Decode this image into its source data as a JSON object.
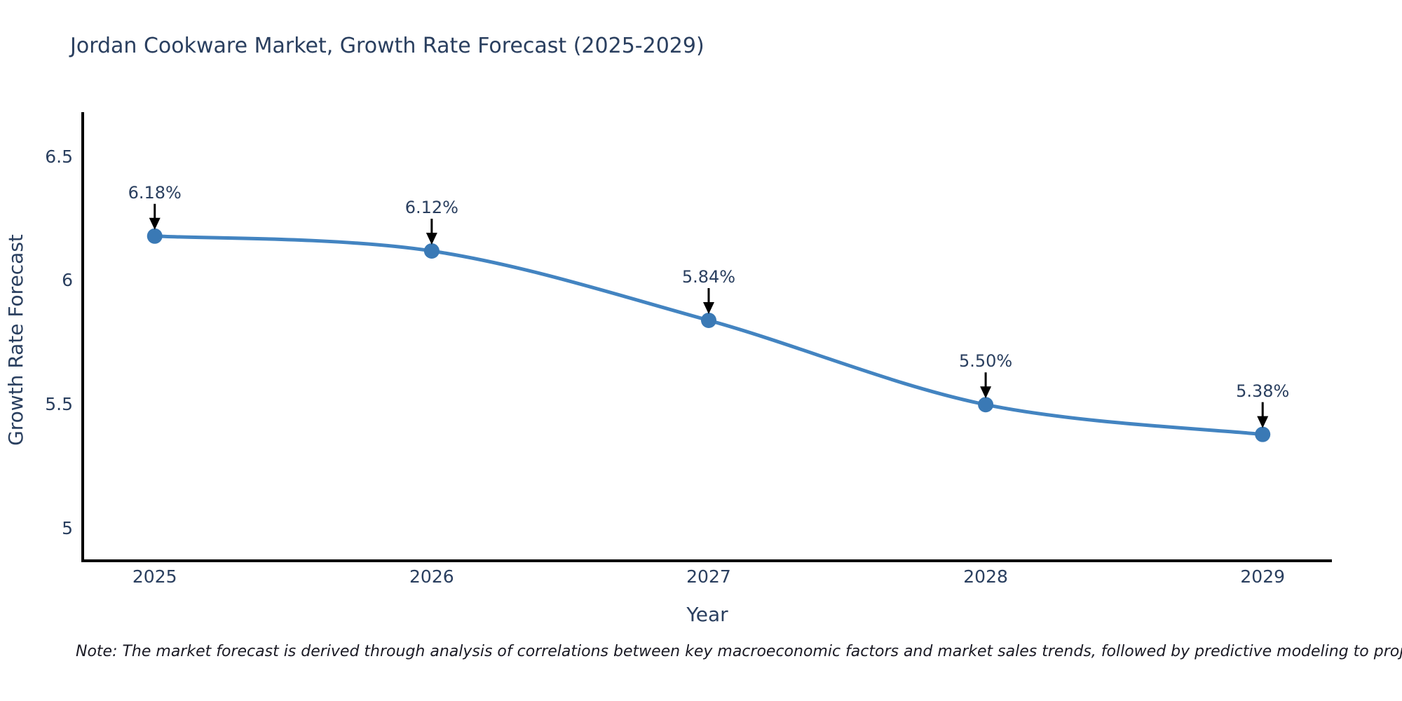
{
  "page": {
    "note": "Note: The market forecast is derived through analysis of correlations between key macroeconomic factors and market sales trends, followed by predictive modeling to project future sales"
  },
  "chart_data": {
    "type": "line",
    "title": "Jordan Cookware Market, Growth Rate Forecast (2025-2029)",
    "xlabel": "Year",
    "ylabel": "Growth Rate Forecast",
    "x": [
      2025,
      2026,
      2027,
      2028,
      2029
    ],
    "series": [
      {
        "name": "Growth Rate Forecast",
        "values": [
          6.18,
          6.12,
          5.84,
          5.5,
          5.38
        ]
      }
    ],
    "point_labels": [
      "6.18%",
      "6.12%",
      "5.84%",
      "5.50%",
      "5.38%"
    ],
    "xticks": [
      "2025",
      "2026",
      "2027",
      "2028",
      "2029"
    ],
    "yticks": [
      {
        "value": 6.5,
        "label": "6.5"
      },
      {
        "value": 6,
        "label": "6"
      },
      {
        "value": 5.5,
        "label": "5.5"
      },
      {
        "value": 5,
        "label": "5"
      }
    ],
    "xlim": [
      2024.74,
      2029.25
    ],
    "ylim": [
      4.87,
      6.68
    ],
    "grid": false,
    "legend": false,
    "line_shape": "spline",
    "annotation_arrows": true,
    "line_color": "#4384c1",
    "marker_color": "#3a79b5",
    "text_color": "#2a3f5f",
    "axis_color": "#000000",
    "arrow_color": "#000000"
  }
}
